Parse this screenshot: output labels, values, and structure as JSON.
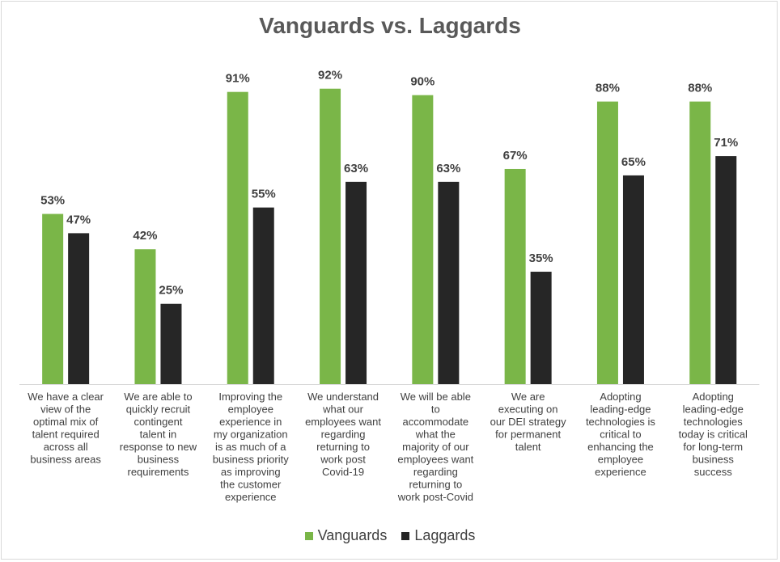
{
  "chart_data": {
    "type": "bar",
    "title": "Vanguards vs. Laggards",
    "categories": [
      "We have a clear view of the optimal mix of talent required across all business areas",
      "We are able to quickly recruit contingent talent in response to new business requirements",
      "Improving the employee experience in my organization is as much of a business priority as improving the customer experience",
      "We understand what our employees want regarding returning to work post Covid-19",
      "We will be able to accommodate what the majority of our employees want regarding returning to work post-Covid",
      "We are executing on our DEI strategy for permanent talent",
      "Adopting leading-edge technologies is critical to enhancing the employee experience",
      "Adopting leading-edge technologies today is critical for long-term business success"
    ],
    "category_lines": [
      [
        "We have a clear",
        "view of the",
        "optimal mix of",
        "talent required",
        "across all",
        "business areas"
      ],
      [
        "We are able to",
        "quickly recruit",
        "contingent",
        "talent in",
        "response to new",
        "business",
        "requirements"
      ],
      [
        "Improving the",
        "employee",
        "experience in",
        "my organization",
        "is as much of a",
        "business priority",
        "as improving",
        "the customer",
        "experience"
      ],
      [
        "We understand",
        "what our",
        "employees want",
        "regarding",
        "returning to",
        "work post",
        "Covid-19"
      ],
      [
        "We will be able",
        "to",
        "accommodate",
        "what the",
        "majority of our",
        "employees want",
        "regarding",
        "returning to",
        "work post-Covid"
      ],
      [
        "We are",
        "executing on",
        "our DEI strategy",
        "for permanent",
        "talent"
      ],
      [
        "Adopting",
        "leading-edge",
        "technologies is",
        "critical to",
        "enhancing the",
        "employee",
        "experience"
      ],
      [
        "Adopting",
        "leading-edge",
        "technologies",
        "today is critical",
        "for long-term",
        "business",
        "success"
      ]
    ],
    "series": [
      {
        "name": "Vanguards",
        "color": "#7ab648",
        "values": [
          53,
          42,
          91,
          92,
          90,
          67,
          88,
          88
        ]
      },
      {
        "name": "Laggards",
        "color": "#262626",
        "values": [
          47,
          25,
          55,
          63,
          63,
          35,
          65,
          71
        ]
      }
    ],
    "value_suffix": "%",
    "ylim": [
      0,
      100
    ],
    "grid": false,
    "legend_position": "bottom"
  }
}
